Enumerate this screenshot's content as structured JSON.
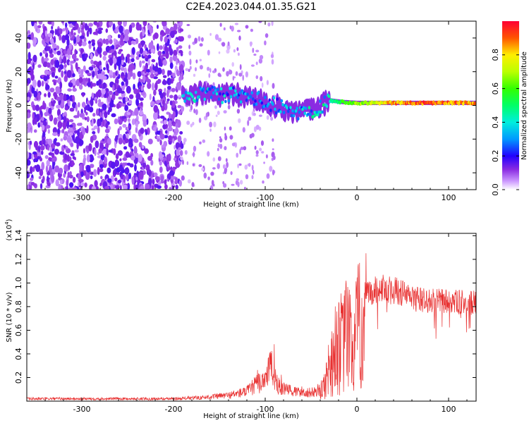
{
  "title": "C2E4.2023.044.01.35.G21",
  "chart_data": [
    {
      "type": "heatmap",
      "xlabel": "Height of straight line (km)",
      "ylabel": "Frequency (Hz)",
      "xlim": [
        -360,
        130
      ],
      "ylim": [
        -50,
        50
      ],
      "xticks": [
        -300,
        -200,
        -100,
        0,
        100
      ],
      "yticks": [
        -40,
        -20,
        0,
        20,
        40
      ],
      "colorbar": {
        "label": "Normalized spectral amplitude",
        "range": [
          0,
          1
        ],
        "ticks": [
          "0.0",
          "0.2",
          "0.4",
          "0.6",
          "0.8"
        ],
        "colormap": "rainbow (white/violet low to red high)"
      },
      "ridge": [
        {
          "x": -190,
          "f": 6,
          "amp": 0.35
        },
        {
          "x": -170,
          "f": 7,
          "amp": 0.35
        },
        {
          "x": -150,
          "f": 6,
          "amp": 0.35
        },
        {
          "x": -130,
          "f": 6,
          "amp": 0.3
        },
        {
          "x": -110,
          "f": 4,
          "amp": 0.3
        },
        {
          "x": -90,
          "f": 0,
          "amp": 0.3
        },
        {
          "x": -75,
          "f": -3,
          "amp": 0.3
        },
        {
          "x": -60,
          "f": -4,
          "amp": 0.35
        },
        {
          "x": -45,
          "f": -2,
          "amp": 0.4
        },
        {
          "x": -30,
          "f": 3,
          "amp": 0.45
        },
        {
          "x": -15,
          "f": 2,
          "amp": 0.6
        },
        {
          "x": 0,
          "f": 1.5,
          "amp": 0.7
        },
        {
          "x": 20,
          "f": 1.5,
          "amp": 0.75
        },
        {
          "x": 40,
          "f": 1.5,
          "amp": 0.9
        },
        {
          "x": 60,
          "f": 1.5,
          "amp": 0.92
        },
        {
          "x": 80,
          "f": 1.5,
          "amp": 0.95
        },
        {
          "x": 100,
          "f": 1.5,
          "amp": 0.93
        },
        {
          "x": 120,
          "f": 1.5,
          "amp": 0.9
        },
        {
          "x": 130,
          "f": 1.5,
          "amp": 0.88
        }
      ],
      "noise_edge": -200
    },
    {
      "type": "line",
      "xlabel": "Height of straight line (km)",
      "ylabel": "SNR (10 * v/v)",
      "y_multiplier": "(x10^4)",
      "xlim": [
        -360,
        130
      ],
      "ylim": [
        0,
        1.42
      ],
      "xticks": [
        -300,
        -200,
        -100,
        0,
        100
      ],
      "yticks": [
        "0.2",
        "0.4",
        "0.6",
        "0.8",
        "1.0",
        "1.2",
        "1.4"
      ],
      "color": "#e83030",
      "series": [
        {
          "x": [
            -360,
            -300,
            -250,
            -200,
            -170,
            -140,
            -120,
            -100,
            -95,
            -90,
            -85,
            -80,
            -70,
            -60,
            -50,
            -40,
            -35,
            -30,
            -25,
            -20,
            -15,
            -10,
            -5,
            0,
            5,
            10,
            15,
            20,
            30,
            40,
            50,
            60,
            70,
            80,
            90,
            100,
            110,
            120,
            130
          ],
          "values": [
            0.02,
            0.02,
            0.02,
            0.02,
            0.03,
            0.05,
            0.08,
            0.2,
            0.3,
            0.22,
            0.12,
            0.1,
            0.08,
            0.08,
            0.07,
            0.1,
            0.2,
            0.42,
            0.55,
            0.72,
            0.62,
            0.85,
            0.55,
            0.82,
            0.88,
            0.95,
            0.98,
            1.0,
            1.02,
            1.0,
            0.97,
            0.93,
            0.91,
            0.9,
            0.9,
            0.9,
            0.89,
            0.89,
            0.88
          ]
        }
      ]
    }
  ]
}
